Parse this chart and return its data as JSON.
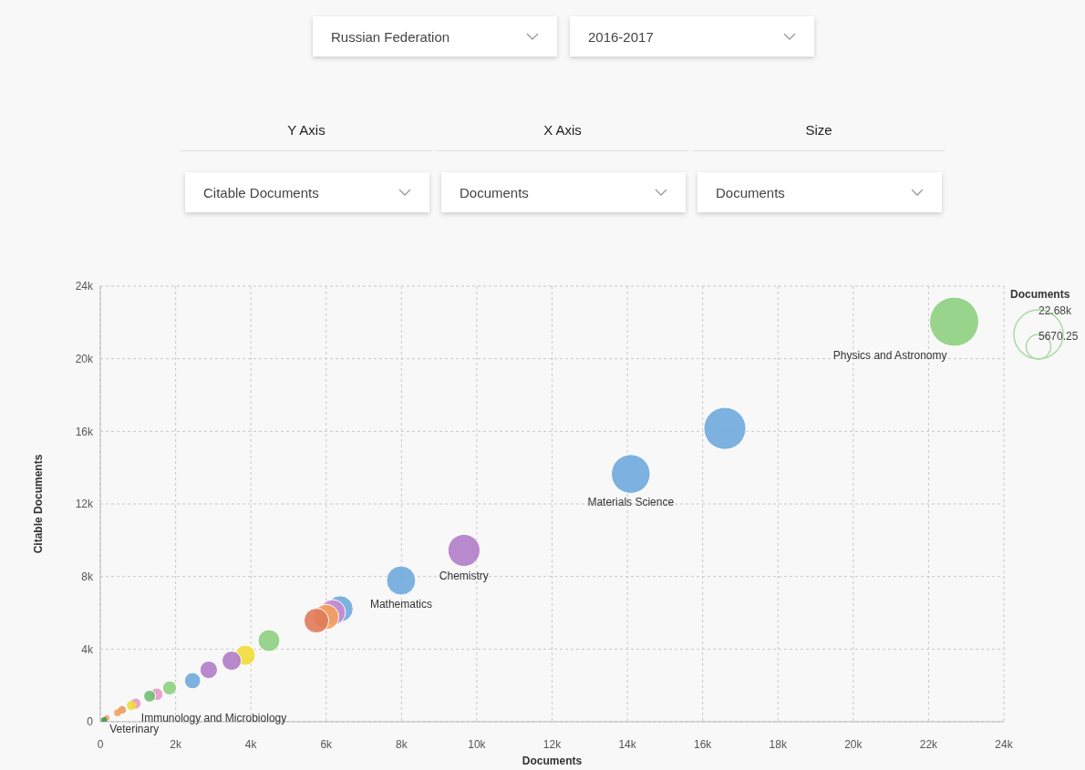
{
  "chart_data": {
    "type": "bubble",
    "xlabel": "Documents",
    "ylabel": "Citable Documents",
    "legend_title": "Documents",
    "x": [
      22680,
      16590,
      14090,
      9660,
      7990,
      6370,
      6170,
      6000,
      5740,
      4480,
      3850,
      3490,
      2880,
      2450,
      1840,
      1500,
      1310,
      940,
      830,
      580,
      460,
      170,
      100
    ],
    "values": [
      22040,
      16160,
      13650,
      9440,
      7780,
      6220,
      6020,
      5770,
      5570,
      4470,
      3660,
      3360,
      2860,
      2260,
      1860,
      1510,
      1410,
      1000,
      900,
      650,
      500,
      200,
      100
    ],
    "sizes": [
      22680,
      16590,
      14090,
      9660,
      7990,
      6370,
      6170,
      6000,
      5740,
      4480,
      3850,
      3490,
      2880,
      2450,
      1840,
      1500,
      1310,
      940,
      830,
      580,
      460,
      280,
      300
    ],
    "colors": [
      "#8dcf7f",
      "#6fa8dc",
      "#6fa8dc",
      "#b07cc6",
      "#6fa8dc",
      "#6fa8dc",
      "#c98bd0",
      "#f5a05a",
      "#e07a5a",
      "#8dcf7f",
      "#f0dc3a",
      "#b07cc6",
      "#b07cc6",
      "#6fa8dc",
      "#8dcf7f",
      "#e59ac8",
      "#6cc070",
      "#e59ac8",
      "#f0dc3a",
      "#e0a060",
      "#f5a05a",
      "#f5a05a",
      "#3a9a50"
    ],
    "size_legend": [
      {
        "value": 22680,
        "label": "22.68k"
      },
      {
        "value": 5670.25,
        "label": "5670.25"
      }
    ],
    "xlim": [
      0,
      24000
    ],
    "xticks": [
      0,
      {
        "value": 2000,
        "label": "2k"
      },
      {
        "value": 4000,
        "label": "4k"
      },
      {
        "value": 6000,
        "label": "6k"
      },
      {
        "value": 8000,
        "label": "8k"
      },
      {
        "value": 10000,
        "label": "10k"
      },
      {
        "value": 12000,
        "label": "12k"
      },
      {
        "value": 14000,
        "label": "14k"
      },
      {
        "value": 16000,
        "label": "16k"
      },
      {
        "value": 18000,
        "label": "18k"
      },
      {
        "value": 20000,
        "label": "20k"
      },
      {
        "value": 22000,
        "label": "22k"
      },
      {
        "value": 24000,
        "label": "24k"
      }
    ],
    "ylim": [
      0,
      24000
    ],
    "yticks": [
      0,
      {
        "value": 4000,
        "label": "4k"
      },
      {
        "value": 8000,
        "label": "8k"
      },
      {
        "value": 12000,
        "label": "12k"
      },
      {
        "value": 16000,
        "label": "16k"
      },
      {
        "value": 20000,
        "label": "20k"
      },
      {
        "value": 24000,
        "label": "24k"
      }
    ],
    "grid": true,
    "annotations": [
      {
        "text": "Physics and Astronomy",
        "x": 22680,
        "y": 22040
      },
      {
        "text": "Materials Science",
        "x": 14090,
        "y": 13650
      },
      {
        "text": "Chemistry",
        "x": 9660,
        "y": 9440
      },
      {
        "text": "Mathematics",
        "x": 7990,
        "y": 7780
      },
      {
        "text": "Immunology and Microbiology",
        "x": 940,
        "y": 1000
      },
      {
        "text": "Veterinary",
        "x": 100,
        "y": 100
      },
      "Russian Federation",
      "2016-2017",
      "Y Axis",
      "X Axis",
      "Size",
      "Citable Documents",
      "Documents",
      "Documents"
    ]
  }
}
